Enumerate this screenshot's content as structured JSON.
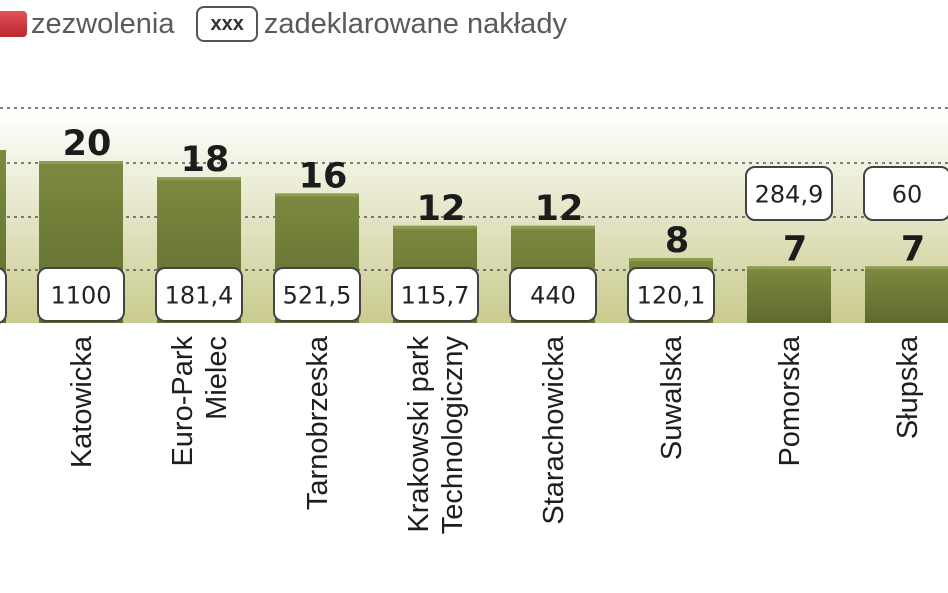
{
  "legend": {
    "permits_label": "zezwolenia",
    "box_sample": "xxx",
    "investment_label": "zadeklarowane nakłady"
  },
  "colors": {
    "bar": "#6b7836",
    "bar_top": "#7c8a40",
    "grid": "#555555",
    "permits_swatch": "#c8323a",
    "background_gradient_top": "#ffffff",
    "background_gradient_bottom": "#c9cb8e"
  },
  "chart_data": {
    "type": "bar",
    "title": "",
    "xlabel": "",
    "ylabel": "",
    "grid": true,
    "legend_position": "top-left",
    "categories": [
      "",
      "Katowicka",
      "Euro-Park Mielec",
      "Tarnobrzeska",
      "Krakowski park Technologiczny",
      "Starachowicka",
      "Suwalska",
      "Pomorska",
      "Słupska"
    ],
    "tick_labels": [
      [
        ""
      ],
      [
        "Katowicka"
      ],
      [
        "Euro-Park",
        "Mielec"
      ],
      [
        "Tarnobrzeska"
      ],
      [
        "Krakowski park",
        "Technologiczny"
      ],
      [
        "Starachowicka"
      ],
      [
        "Suwalska"
      ],
      [
        "Pomorska"
      ],
      [
        "Słupska"
      ]
    ],
    "series": [
      {
        "name": "zezwolenia",
        "values": [
          null,
          20,
          18,
          16,
          12,
          12,
          8,
          7,
          7
        ],
        "data_labels": [
          "",
          "20",
          "18",
          "16",
          "12",
          "12",
          "8",
          "7",
          "7"
        ]
      },
      {
        "name": "zadeklarowane nakłady",
        "values": [
          null,
          1100,
          181.4,
          521.5,
          115.7,
          440,
          120.1,
          284.9,
          60
        ],
        "data_labels": [
          "",
          "1100",
          "181,4",
          "521,5",
          "115,7",
          "440",
          "120,1",
          "284,9",
          "60"
        ]
      }
    ],
    "ylim": [
      0,
      26
    ]
  }
}
